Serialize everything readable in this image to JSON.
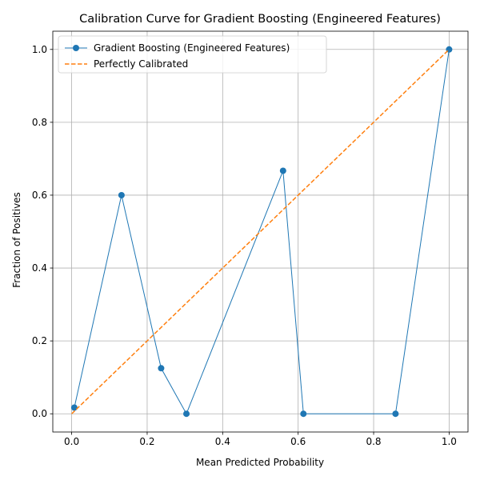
{
  "chart_data": {
    "type": "line",
    "title": "Calibration Curve for Gradient Boosting (Engineered Features)",
    "xlabel": "Mean Predicted Probability",
    "ylabel": "Fraction of Positives",
    "xlim": [
      -0.05,
      1.05
    ],
    "ylim": [
      -0.05,
      1.05
    ],
    "xticks": [
      "0.0",
      "0.2",
      "0.4",
      "0.6",
      "0.8",
      "1.0"
    ],
    "yticks": [
      "0.0",
      "0.2",
      "0.4",
      "0.6",
      "0.8",
      "1.0"
    ],
    "grid": true,
    "legend_position": "top-left",
    "series": [
      {
        "name": "Gradient Boosting (Engineered Features)",
        "color": "#1f77b4",
        "style": "solid-with-circle-markers",
        "x": [
          0.007,
          0.132,
          0.237,
          0.304,
          0.56,
          0.614,
          0.858,
          1.0
        ],
        "y": [
          0.017,
          0.6,
          0.125,
          0.0,
          0.667,
          0.0,
          0.0,
          1.0
        ]
      },
      {
        "name": "Perfectly Calibrated",
        "color": "#ff7f0e",
        "style": "dashed",
        "x": [
          0,
          1
        ],
        "y": [
          0,
          1
        ]
      }
    ]
  }
}
